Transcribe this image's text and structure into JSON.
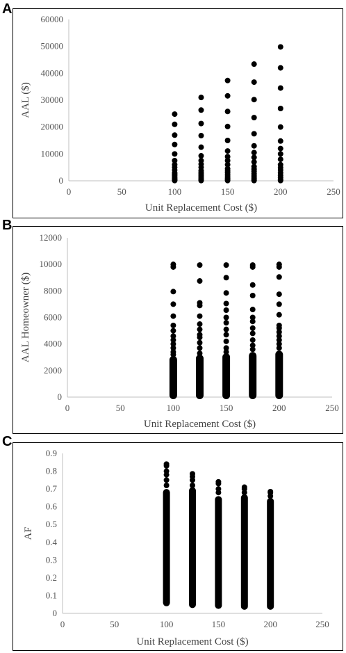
{
  "chart_data": [
    {
      "panel": "A",
      "type": "scatter",
      "xlabel": "Unit Replacement Cost ($)",
      "ylabel": "AAL ($)",
      "xlim": [
        0,
        250
      ],
      "ylim": [
        0,
        60000
      ],
      "xticks": [
        0,
        50,
        100,
        150,
        200,
        250
      ],
      "yticks": [
        0,
        10000,
        20000,
        30000,
        40000,
        50000,
        60000
      ],
      "grid": false,
      "series": [
        {
          "x": 100,
          "y": [
            24800,
            21000,
            17000,
            13500,
            10000,
            7500,
            6000,
            5000,
            4000,
            3000,
            2500,
            2000,
            1500,
            1000,
            600,
            300,
            100
          ]
        },
        {
          "x": 125,
          "y": [
            31000,
            26300,
            21300,
            16800,
            12500,
            9300,
            7500,
            6200,
            5000,
            3800,
            3100,
            2500,
            1900,
            1300,
            700,
            350,
            100
          ]
        },
        {
          "x": 150,
          "y": [
            37300,
            31600,
            25800,
            20200,
            15000,
            11100,
            9000,
            7500,
            6000,
            4500,
            3700,
            3000,
            2200,
            1500,
            900,
            400,
            100
          ]
        },
        {
          "x": 175,
          "y": [
            43400,
            36700,
            30200,
            23500,
            17500,
            13000,
            10500,
            8700,
            7000,
            5300,
            4300,
            3500,
            2600,
            1800,
            1000,
            450,
            100
          ]
        },
        {
          "x": 200,
          "y": [
            49800,
            42000,
            34500,
            26900,
            20000,
            14800,
            12000,
            10000,
            8000,
            6000,
            4900,
            4000,
            3000,
            2000,
            1200,
            500,
            100
          ]
        }
      ]
    },
    {
      "panel": "B",
      "type": "scatter",
      "xlabel": "Unit Replacement Cost ($)",
      "ylabel": "AAL Homeowner ($)",
      "xlim": [
        0,
        250
      ],
      "ylim": [
        0,
        12000
      ],
      "xticks": [
        0,
        50,
        100,
        150,
        200,
        250
      ],
      "yticks": [
        0,
        2000,
        4000,
        6000,
        8000,
        10000,
        12000
      ],
      "grid": false,
      "series": [
        {
          "x": 100,
          "y": [
            10000,
            9800,
            7950,
            7000,
            6100,
            5400,
            5000,
            4600,
            4300,
            4000,
            3700,
            3400,
            3200
          ],
          "column_top": 3100
        },
        {
          "x": 125,
          "y": [
            9950,
            8750,
            7100,
            6900,
            6100,
            5500,
            5100,
            4700,
            4500,
            4100,
            3700,
            3300
          ],
          "column_top": 3200
        },
        {
          "x": 150,
          "y": [
            9950,
            9000,
            7850,
            7050,
            6550,
            6000,
            5600,
            5100,
            4700,
            4200,
            3700,
            3400
          ],
          "column_top": 3300
        },
        {
          "x": 175,
          "y": [
            9950,
            9800,
            8450,
            7650,
            6600,
            6000,
            5700,
            5200,
            4800,
            4300,
            3900,
            3600
          ],
          "column_top": 3400
        },
        {
          "x": 200,
          "y": [
            10000,
            9800,
            9050,
            7750,
            7000,
            6200,
            5400,
            5200,
            4900,
            4600,
            4300,
            4000,
            3700
          ],
          "column_top": 3500
        }
      ]
    },
    {
      "panel": "C",
      "type": "scatter",
      "xlabel": "Unit Replacement Cost ($)",
      "ylabel": "AF",
      "xlim": [
        0,
        250
      ],
      "ylim": [
        0,
        0.9
      ],
      "xticks": [
        0,
        50,
        100,
        150,
        200,
        250
      ],
      "yticks": [
        0,
        0.1,
        0.2,
        0.3,
        0.4,
        0.5,
        0.6,
        0.7,
        0.8,
        0.9
      ],
      "ytick_labels": [
        "0",
        "0.1",
        "0.2",
        "0.3",
        "0.4",
        "0.5",
        "0.6",
        "0.7",
        "0.8",
        "0.9"
      ],
      "grid": false,
      "series": [
        {
          "x": 100,
          "y": [
            0.84,
            0.83,
            0.8,
            0.78,
            0.75,
            0.72
          ],
          "column_range": [
            0.04,
            0.7
          ]
        },
        {
          "x": 125,
          "y": [
            0.785,
            0.77,
            0.75,
            0.72
          ],
          "column_range": [
            0.03,
            0.71
          ]
        },
        {
          "x": 150,
          "y": [
            0.74,
            0.73,
            0.7,
            0.68
          ],
          "column_range": [
            0.025,
            0.66
          ]
        },
        {
          "x": 175,
          "y": [
            0.71,
            0.7,
            0.68
          ],
          "column_range": [
            0.02,
            0.67
          ]
        },
        {
          "x": 200,
          "y": [
            0.685,
            0.68,
            0.66
          ],
          "column_range": [
            0.02,
            0.65
          ]
        }
      ]
    }
  ]
}
